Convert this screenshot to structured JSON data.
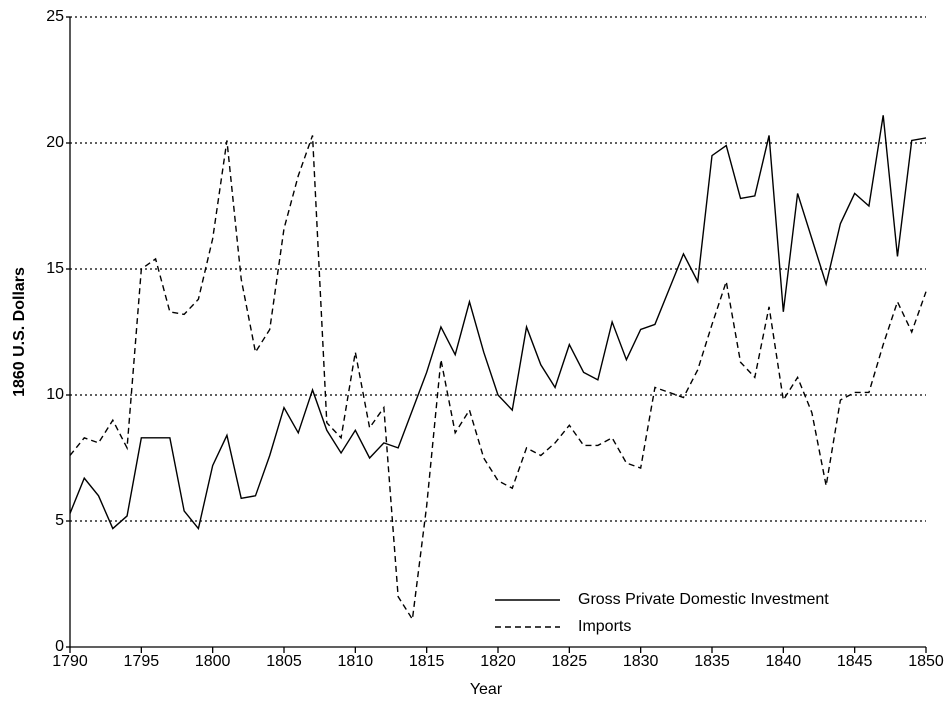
{
  "chart_data": {
    "type": "line",
    "xlabel": "Year",
    "ylabel": "1860 U.S. Dollars",
    "x": [
      1790,
      1791,
      1792,
      1793,
      1794,
      1795,
      1796,
      1797,
      1798,
      1799,
      1800,
      1801,
      1802,
      1803,
      1804,
      1805,
      1806,
      1807,
      1808,
      1809,
      1810,
      1811,
      1812,
      1813,
      1814,
      1815,
      1816,
      1817,
      1818,
      1819,
      1820,
      1821,
      1822,
      1823,
      1824,
      1825,
      1826,
      1827,
      1828,
      1829,
      1830,
      1831,
      1832,
      1833,
      1834,
      1835,
      1836,
      1837,
      1838,
      1839,
      1840,
      1841,
      1842,
      1843,
      1844,
      1845,
      1846,
      1847,
      1848,
      1849,
      1850
    ],
    "series": [
      {
        "name": "Gross Private Domestic Investment",
        "color": "#000000",
        "dash": "solid",
        "values": [
          5.3,
          6.7,
          6.0,
          4.7,
          5.2,
          8.3,
          8.3,
          8.3,
          5.4,
          4.7,
          7.2,
          8.4,
          5.9,
          6.0,
          7.6,
          9.5,
          8.5,
          10.2,
          8.6,
          7.7,
          8.6,
          7.5,
          8.1,
          7.9,
          9.4,
          10.9,
          12.7,
          11.6,
          13.7,
          11.7,
          10.0,
          9.4,
          12.7,
          11.2,
          10.3,
          12.0,
          10.9,
          10.6,
          12.9,
          11.4,
          12.6,
          12.8,
          14.2,
          15.6,
          14.5,
          19.5,
          19.9,
          17.8,
          17.9,
          20.3,
          13.3,
          18.0,
          16.2,
          14.4,
          16.8,
          18.0,
          17.5,
          21.1,
          15.5,
          20.1,
          20.2
        ]
      },
      {
        "name": "Imports",
        "color": "#000000",
        "dash": "dashed",
        "values": [
          7.6,
          8.3,
          8.1,
          9.0,
          7.9,
          15.0,
          15.4,
          13.3,
          13.2,
          13.8,
          16.2,
          20.1,
          14.6,
          11.7,
          12.6,
          16.6,
          18.7,
          20.3,
          8.9,
          8.3,
          11.7,
          8.7,
          9.5,
          2.0,
          1.1,
          5.6,
          11.4,
          8.5,
          9.4,
          7.5,
          6.6,
          6.3,
          7.9,
          7.6,
          8.1,
          8.8,
          8.0,
          8.0,
          8.3,
          7.3,
          7.1,
          10.3,
          10.1,
          9.9,
          11.0,
          12.8,
          14.5,
          11.3,
          10.7,
          13.5,
          9.8,
          10.7,
          9.3,
          6.4,
          9.8,
          10.1,
          10.1,
          12.0,
          13.7,
          12.5,
          14.1
        ]
      }
    ],
    "xlim": [
      1790,
      1850
    ],
    "xticks": [
      1790,
      1795,
      1800,
      1805,
      1810,
      1815,
      1820,
      1825,
      1830,
      1835,
      1840,
      1845,
      1850
    ],
    "ylim": [
      0,
      25
    ],
    "yticks": [
      0,
      5,
      10,
      15,
      20,
      25
    ],
    "grid": true,
    "legend": "lower right"
  }
}
